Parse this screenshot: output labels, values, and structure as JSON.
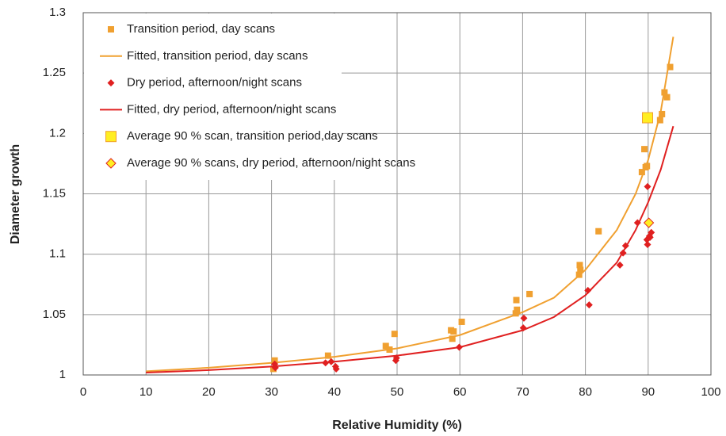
{
  "chart_data": {
    "type": "scatter",
    "x_label": "Relative Humidity (%)",
    "y_label": "Diameter growth",
    "xlim": [
      0,
      100
    ],
    "xticks": [
      0,
      10,
      20,
      30,
      40,
      50,
      60,
      70,
      80,
      90,
      100
    ],
    "ylim": [
      1,
      1.3
    ],
    "yticks": [
      1,
      1.05,
      1.1,
      1.15,
      1.2,
      1.25,
      1.3
    ],
    "grid": true,
    "legend": "upper left",
    "series": [
      {
        "name": "Transition period, day scans",
        "mode": "markers",
        "marker": "square",
        "color": "#f0a030",
        "x": [
          30.5,
          30.3,
          39,
          48.2,
          48.8,
          49.6,
          58.6,
          59,
          58.8,
          60.3,
          69,
          69.1,
          68.9,
          71.1,
          79.1,
          79.2,
          79,
          82.1,
          89,
          89.4,
          89.8,
          89.6,
          91.9,
          92.2,
          92.6,
          93,
          93.5
        ],
        "y": [
          1.012,
          1.005,
          1.016,
          1.024,
          1.021,
          1.034,
          1.037,
          1.036,
          1.03,
          1.044,
          1.062,
          1.054,
          1.051,
          1.067,
          1.091,
          1.087,
          1.083,
          1.119,
          1.168,
          1.187,
          1.173,
          1.172,
          1.211,
          1.216,
          1.234,
          1.23,
          1.255
        ]
      },
      {
        "name": "Fitted, transition period, day scans",
        "mode": "line",
        "color": "#f0a030",
        "x": [
          10,
          20,
          30,
          40,
          50,
          60,
          70,
          75,
          80,
          85,
          88,
          90,
          92,
          94
        ],
        "y": [
          1.003,
          1.006,
          1.01,
          1.015,
          1.022,
          1.033,
          1.052,
          1.064,
          1.087,
          1.12,
          1.15,
          1.178,
          1.218,
          1.28
        ]
      },
      {
        "name": "Dry period, afternoon/night scans",
        "mode": "markers",
        "marker": "diamond",
        "color": "#e02020",
        "x": [
          30.5,
          30.6,
          38.6,
          39.5,
          40.2,
          40.3,
          49.8,
          49.9,
          59.9,
          70.2,
          70.1,
          80.4,
          80.6,
          85.5,
          86,
          86.4,
          88.3,
          89.9,
          89.8,
          90.2,
          90.5,
          89.9,
          90.3
        ],
        "y": [
          1.009,
          1.006,
          1.01,
          1.011,
          1.007,
          1.005,
          1.012,
          1.014,
          1.023,
          1.047,
          1.039,
          1.07,
          1.058,
          1.091,
          1.101,
          1.107,
          1.126,
          1.156,
          1.112,
          1.115,
          1.118,
          1.108,
          1.114
        ]
      },
      {
        "name": "Fitted, dry period, afternoon/night scans",
        "mode": "line",
        "color": "#e02020",
        "x": [
          10,
          20,
          30,
          40,
          50,
          60,
          70,
          75,
          80,
          85,
          88,
          90,
          92,
          94
        ],
        "y": [
          1.002,
          1.004,
          1.007,
          1.011,
          1.016,
          1.023,
          1.037,
          1.048,
          1.066,
          1.093,
          1.12,
          1.143,
          1.17,
          1.206
        ]
      },
      {
        "name": "Average 90 % scan, transition period,day scans",
        "mode": "markers",
        "marker": "big-square",
        "color": "#ffee22",
        "edge": "#f0a030",
        "x": [
          89.9
        ],
        "y": [
          1.213
        ]
      },
      {
        "name": "Average 90 % scans, dry period, afternoon/night scans",
        "mode": "markers",
        "marker": "big-diamond",
        "color": "#ffee22",
        "edge": "#e02020",
        "x": [
          90.1
        ],
        "y": [
          1.126
        ]
      }
    ]
  }
}
